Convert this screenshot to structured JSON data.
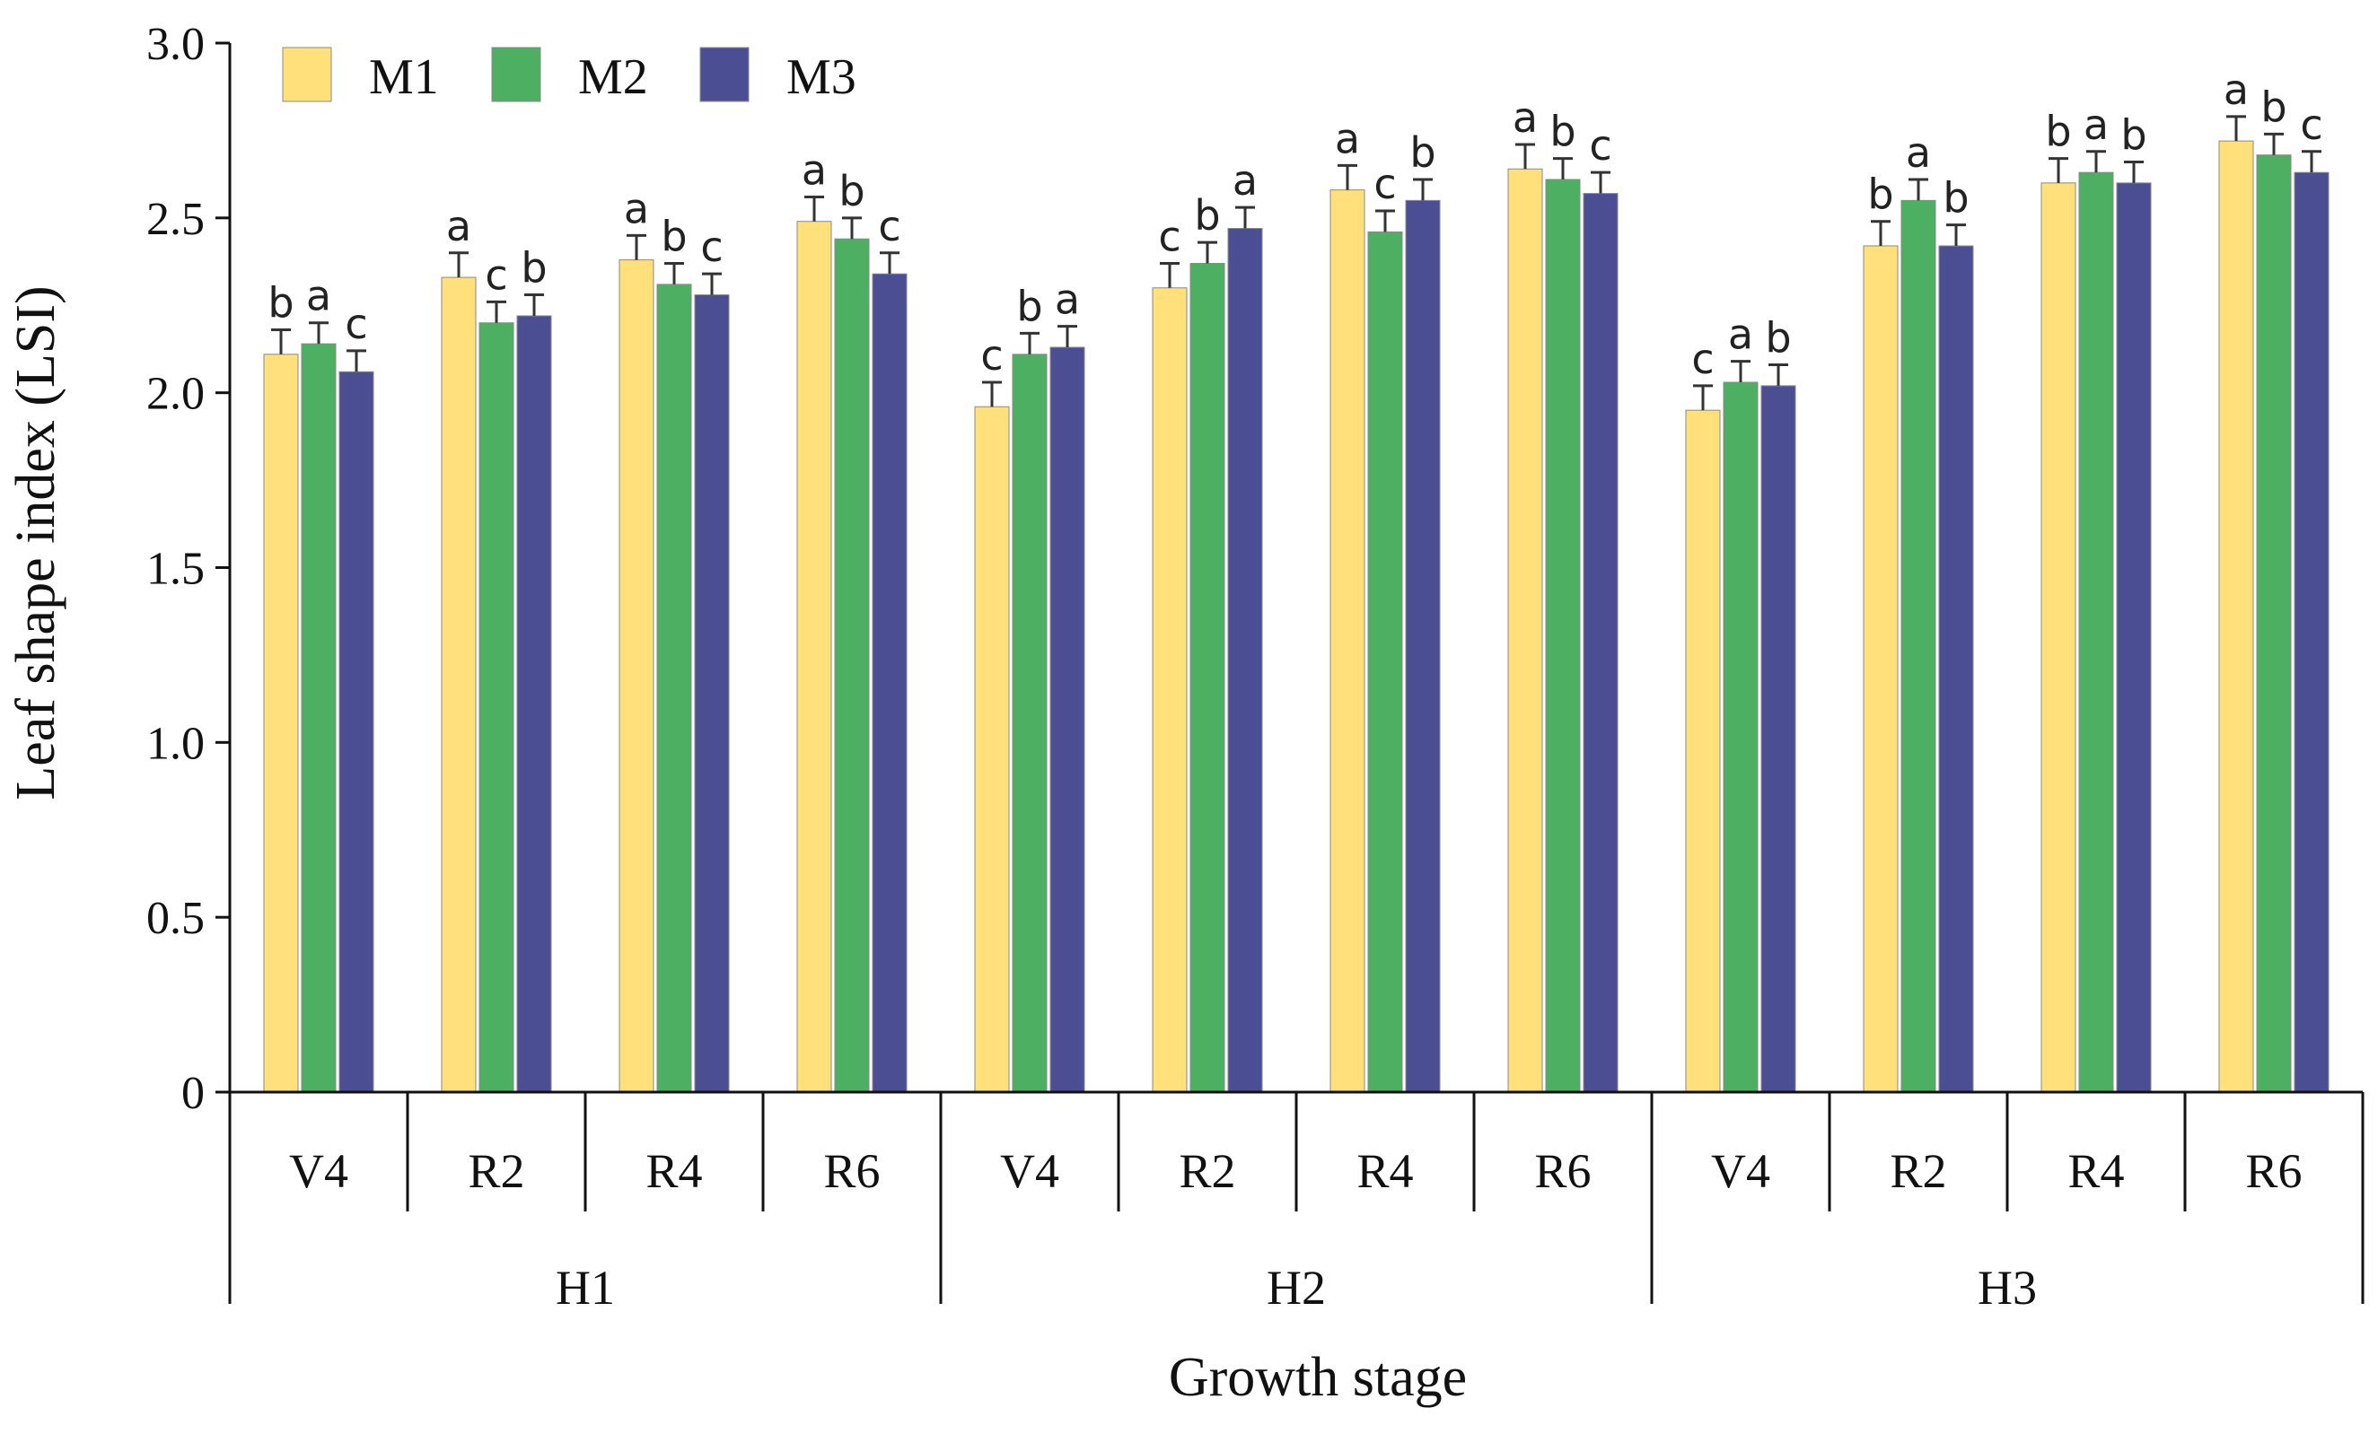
{
  "chart_data": {
    "type": "bar",
    "xlabel": "Growth stage",
    "ylabel": "Leaf shape index (LSI)",
    "ylim": [
      0,
      3.0
    ],
    "yticks": [
      "0",
      "0.5",
      "1.0",
      "1.5",
      "2.0",
      "2.5",
      "3.0"
    ],
    "legend_position": "top-left",
    "groups": [
      "H1",
      "H2",
      "H3"
    ],
    "stages": [
      "V4",
      "R2",
      "R4",
      "R6"
    ],
    "categories": [
      "H1 V4",
      "H1 R2",
      "H1 R4",
      "H1 R6",
      "H2 V4",
      "H2 R2",
      "H2 R4",
      "H2 R6",
      "H3 V4",
      "H3 R2",
      "H3 R4",
      "H3 R6"
    ],
    "series": [
      {
        "name": "M1",
        "color": "#FFE07A",
        "values": [
          2.11,
          2.33,
          2.38,
          2.49,
          1.96,
          2.3,
          2.58,
          2.64,
          1.95,
          2.42,
          2.6,
          2.72
        ],
        "errors": [
          0.07,
          0.07,
          0.07,
          0.07,
          0.07,
          0.07,
          0.07,
          0.07,
          0.07,
          0.07,
          0.07,
          0.07
        ],
        "letters": [
          "b",
          "a",
          "a",
          "a",
          "c",
          "c",
          "a",
          "a",
          "c",
          "b",
          "b",
          "a"
        ]
      },
      {
        "name": "M2",
        "color": "#4CAF61",
        "values": [
          2.14,
          2.2,
          2.31,
          2.44,
          2.11,
          2.37,
          2.46,
          2.61,
          2.03,
          2.55,
          2.63,
          2.68
        ],
        "errors": [
          0.06,
          0.06,
          0.06,
          0.06,
          0.06,
          0.06,
          0.06,
          0.06,
          0.06,
          0.06,
          0.06,
          0.06
        ],
        "letters": [
          "a",
          "c",
          "b",
          "b",
          "b",
          "b",
          "c",
          "b",
          "a",
          "a",
          "a",
          "b"
        ]
      },
      {
        "name": "M3",
        "color": "#4C4E93",
        "values": [
          2.06,
          2.22,
          2.28,
          2.34,
          2.13,
          2.47,
          2.55,
          2.57,
          2.02,
          2.42,
          2.6,
          2.63
        ],
        "errors": [
          0.06,
          0.06,
          0.06,
          0.06,
          0.06,
          0.06,
          0.06,
          0.06,
          0.06,
          0.06,
          0.06,
          0.06
        ],
        "letters": [
          "c",
          "b",
          "c",
          "c",
          "a",
          "a",
          "b",
          "c",
          "b",
          "b",
          "b",
          "c"
        ]
      }
    ]
  }
}
